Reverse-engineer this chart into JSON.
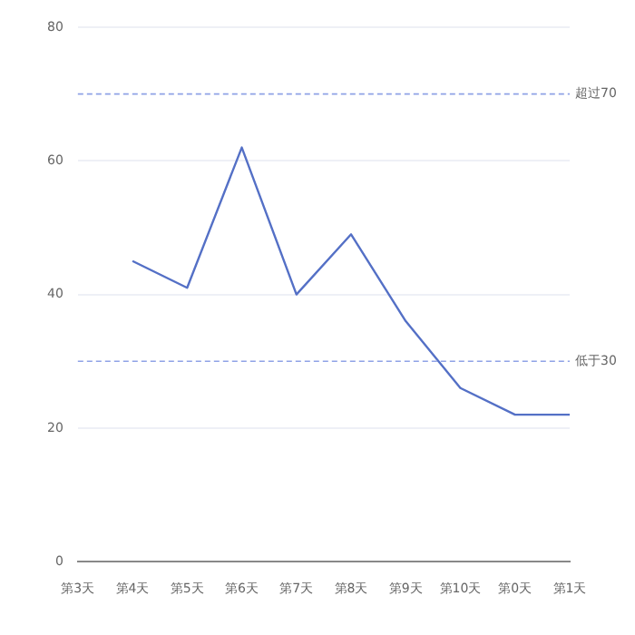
{
  "chart_data": {
    "type": "line",
    "categories": [
      "第3天",
      "第4天",
      "第5天",
      "第6天",
      "第7天",
      "第8天",
      "第9天",
      "第10天",
      "第0天",
      "第1天"
    ],
    "series": [
      {
        "color": "#5470c6",
        "values": [
          null,
          45,
          41,
          62,
          40,
          49,
          36,
          26,
          22,
          22
        ]
      }
    ],
    "ylim": [
      0,
      80
    ],
    "yticks": [
      0,
      20,
      40,
      60,
      80
    ],
    "grid": "y",
    "legend": false,
    "marker": "none",
    "line_style": "solid",
    "ref_lines": [
      {
        "axis": "y",
        "value": 70,
        "label": "超过70",
        "color": "#8fa2e6",
        "line_style": "dashed"
      },
      {
        "axis": "y",
        "value": 30,
        "label": "低于30",
        "color": "#8fa2e6",
        "line_style": "dashed"
      }
    ]
  }
}
